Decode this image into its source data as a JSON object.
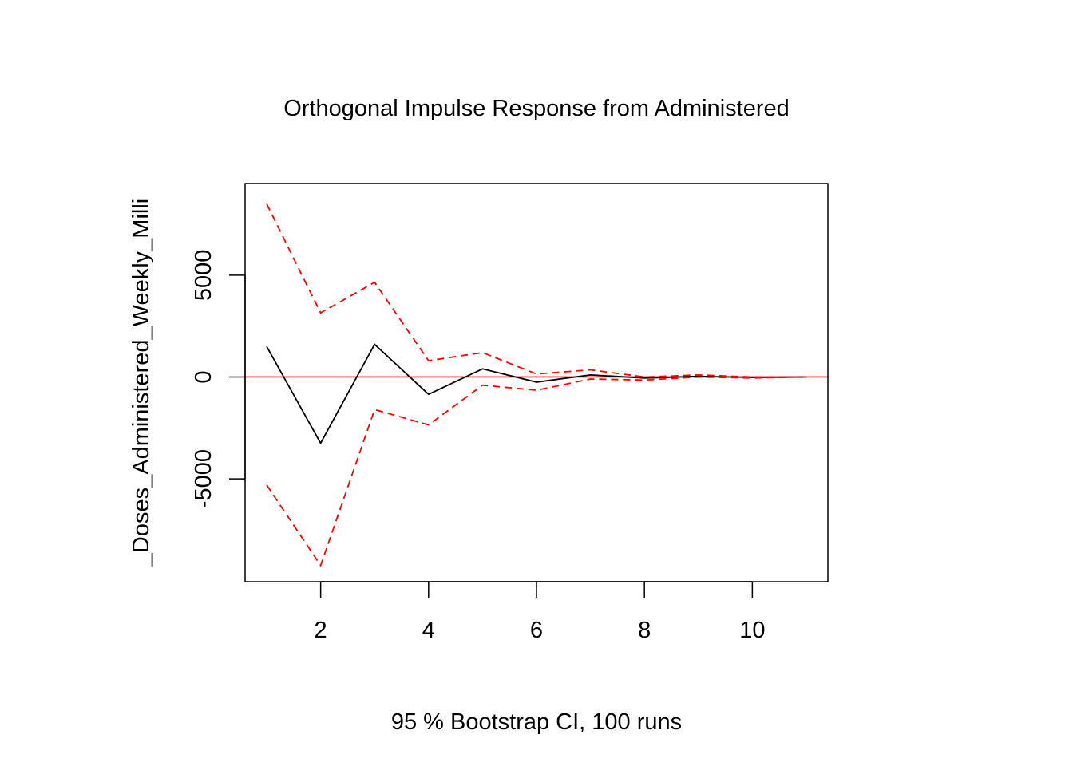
{
  "chart_data": {
    "type": "line",
    "title": "Orthogonal Impulse Response from Administered",
    "xlabel": "95 % Bootstrap CI,  100 runs",
    "ylabel": "_Doses_Administered_Weekly_Milli",
    "x": [
      1,
      2,
      3,
      4,
      5,
      6,
      7,
      8,
      9,
      10,
      11
    ],
    "xlim": [
      0.6,
      11.4
    ],
    "ylim": [
      -10050,
      9500
    ],
    "xticks": [
      2,
      4,
      6,
      8,
      10
    ],
    "yticks": [
      -5000,
      0,
      5000
    ],
    "grid": false,
    "legend": "none",
    "zero_line_color": "#ff0000",
    "series": [
      {
        "color": "#000000",
        "style": "solid",
        "values": [
          1500,
          -3250,
          1600,
          -850,
          400,
          -250,
          100,
          -50,
          30,
          -20,
          0
        ]
      },
      {
        "color": "#ff0000",
        "style": "dashed",
        "values": [
          8500,
          3150,
          4650,
          800,
          1200,
          150,
          350,
          0,
          100,
          0,
          0
        ]
      },
      {
        "color": "#ff0000",
        "style": "dashed",
        "values": [
          -5300,
          -9250,
          -1600,
          -2350,
          -400,
          -650,
          -100,
          -150,
          0,
          -50,
          0
        ]
      }
    ]
  }
}
